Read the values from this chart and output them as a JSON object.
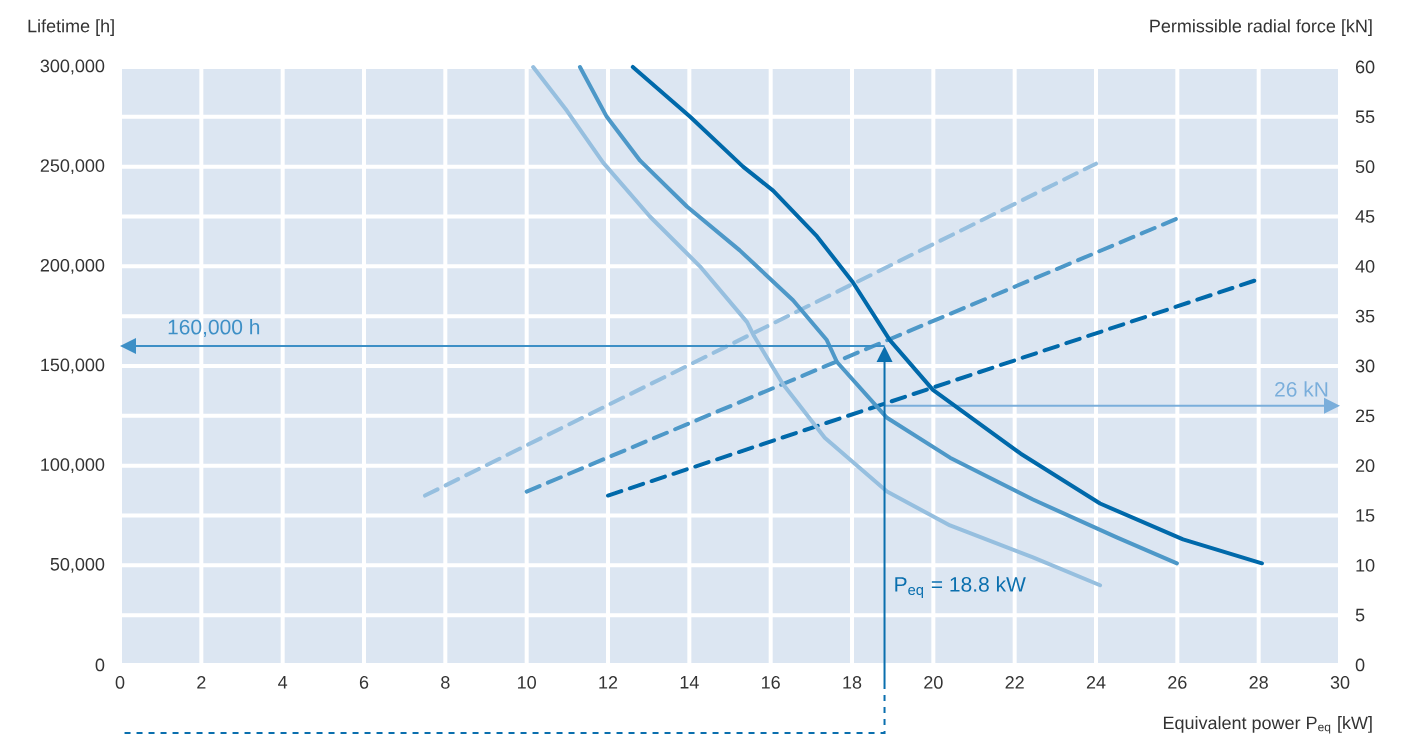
{
  "chart_data": {
    "type": "line",
    "xlabel": "Equivalent power P$_{eq}$ [kW]",
    "ylabel": "Lifetime [h]",
    "y2label": "Permissible radial force [kN]",
    "xlim": [
      0,
      30
    ],
    "xticks": [
      0,
      2,
      4,
      6,
      8,
      10,
      12,
      14,
      16,
      18,
      20,
      22,
      24,
      26,
      28,
      30
    ],
    "ylim": [
      0,
      300000
    ],
    "yticks": [
      {
        "value": 0,
        "label": "0"
      },
      {
        "value": 50000,
        "label": "50,000"
      },
      {
        "value": 100000,
        "label": "100,000"
      },
      {
        "value": 150000,
        "label": "150,000"
      },
      {
        "value": 200000,
        "label": "200,000"
      },
      {
        "value": 250000,
        "label": "250,000"
      },
      {
        "value": 300000,
        "label": "300,000"
      }
    ],
    "y2lim": [
      0,
      60
    ],
    "y2ticks": [
      0,
      5,
      10,
      15,
      20,
      25,
      30,
      35,
      40,
      45,
      50,
      55,
      60
    ],
    "grid": true,
    "series": [
      {
        "color": "#96bfdf",
        "line_style": "solid",
        "x": [
          10.16,
          10.99,
          11.88,
          13.03,
          14.26,
          15.42,
          15.59,
          16.3,
          17.33,
          18.86,
          20.41,
          22.45,
          24.1
        ],
        "values": [
          300000,
          278000,
          252000,
          225000,
          200000,
          172000,
          165000,
          141000,
          114000,
          87000,
          70000,
          54000,
          40000
        ]
      },
      {
        "color": "#4d98c8",
        "line_style": "solid",
        "x": [
          11.31,
          11.97,
          12.79,
          13.94,
          15.24,
          16.55,
          17.38,
          17.63,
          18.86,
          20.41,
          22.45,
          24.51,
          25.99
        ],
        "values": [
          300000,
          275000,
          253000,
          230000,
          208000,
          183000,
          163000,
          152000,
          124000,
          104000,
          83000,
          64000,
          51000
        ]
      },
      {
        "color": "#0069aa",
        "line_style": "solid",
        "x": [
          12.61,
          14.02,
          15.32,
          16.06,
          17.14,
          18.02,
          18.93,
          19.99,
          22.15,
          24.1,
          26.14,
          28.08
        ],
        "values": [
          300000,
          275000,
          250000,
          238000,
          215000,
          192000,
          163000,
          138000,
          106000,
          81000,
          63000,
          51000
        ]
      },
      {
        "color": "#96bfdf",
        "line_style": "dashed",
        "axis": "y2",
        "x": [
          7.5,
          24
        ],
        "values": [
          17,
          50.3
        ]
      },
      {
        "color": "#4d98c8",
        "line_style": "dashed",
        "axis": "y2",
        "x": [
          10,
          26
        ],
        "values": [
          17.4,
          44.8
        ]
      },
      {
        "color": "#0069aa",
        "line_style": "dashed",
        "axis": "y2",
        "x": [
          12,
          28
        ],
        "values": [
          17,
          38.7
        ]
      }
    ],
    "ref_lines": [
      {
        "axis": "x",
        "value": 18.8,
        "label": "P$_{eq}$ = 18.8 kW",
        "color": "#0a6fae"
      },
      {
        "axis": "y",
        "value": 160000,
        "label": "160,000 h",
        "color": "#3d8fc6"
      },
      {
        "axis": "y2",
        "value": 26,
        "label": "26 kN",
        "color": "#7aaedb"
      }
    ]
  }
}
